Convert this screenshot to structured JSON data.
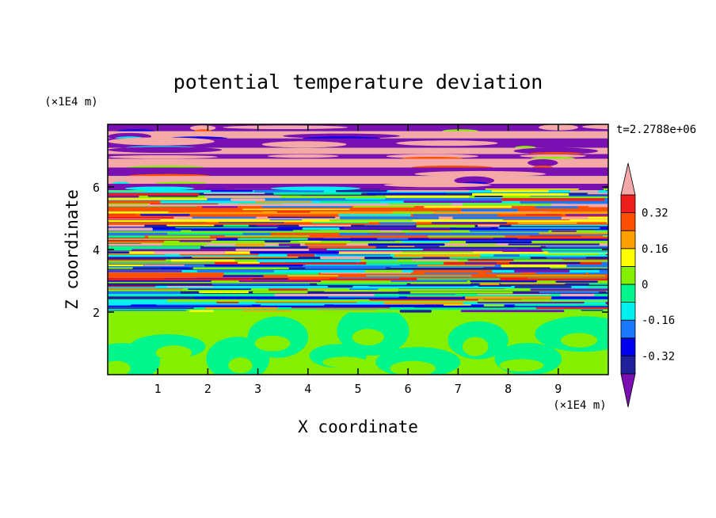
{
  "chart_data": {
    "type": "heatmap",
    "title": "potential temperature deviation",
    "xlabel": "X coordinate",
    "ylabel": "Z coordinate",
    "x_unit": "(×1E4 m)",
    "y_unit": "(×1E4 m)",
    "time_label": "t=2.2788e+06",
    "xlim": [
      0,
      10
    ],
    "ylim": [
      0,
      8
    ],
    "x_ticks": [
      1,
      2,
      3,
      4,
      5,
      6,
      7,
      8,
      9
    ],
    "y_ticks": [
      2,
      4,
      6
    ],
    "colorbar": {
      "levels": [
        -0.4,
        -0.32,
        -0.24,
        -0.16,
        -0.08,
        0,
        0.08,
        0.16,
        0.24,
        0.32,
        0.4
      ],
      "labels": [
        "0.32",
        "0.16",
        "0",
        "-0.16",
        "-0.32"
      ],
      "label_values": [
        0.32,
        0.16,
        0,
        -0.16,
        -0.32
      ],
      "colors": [
        "#7b10b2",
        "#20209a",
        "#0000ee",
        "#1a78ff",
        "#00f0f0",
        "#00f58c",
        "#84f000",
        "#ffff00",
        "#ffa000",
        "#ff5000",
        "#ee1e1e",
        "#f5a8a8"
      ],
      "extend": "both"
    },
    "layers": [
      {
        "z_range": [
          0,
          2
        ],
        "description": "green/light-green mixed convective layer"
      },
      {
        "z_range": [
          2,
          6
        ],
        "description": "thin horizontal multicolor wave streaks"
      },
      {
        "z_range": [
          6,
          8
        ],
        "description": "broad pink and purple bands"
      }
    ]
  }
}
